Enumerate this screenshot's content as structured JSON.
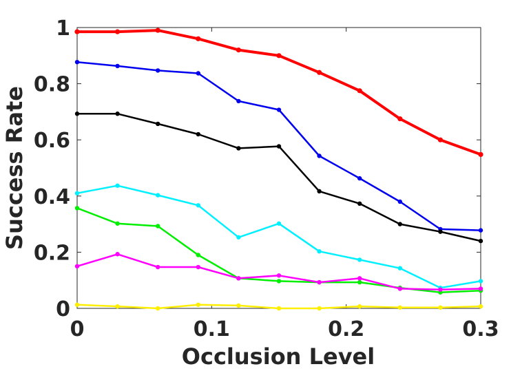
{
  "chart_data": {
    "type": "line",
    "title": "",
    "xlabel": "Occlusion Level",
    "ylabel": "Success Rate",
    "xlim": [
      0,
      0.3
    ],
    "ylim": [
      0,
      1
    ],
    "xticks": [
      0,
      0.1,
      0.2,
      0.3
    ],
    "xtick_labels": [
      "0",
      "0.1",
      "0.2",
      "0.3"
    ],
    "yticks": [
      0,
      0.2,
      0.4,
      0.6,
      0.8,
      1
    ],
    "ytick_labels": [
      "0",
      "0.2",
      "0.4",
      "0.6",
      "0.8",
      "1"
    ],
    "grid": false,
    "legend": "none",
    "x": [
      0,
      0.03,
      0.06,
      0.09,
      0.12,
      0.15,
      0.18,
      0.21,
      0.24,
      0.27,
      0.3
    ],
    "series": [
      {
        "color": "#ff0000",
        "thick": true,
        "values": [
          0.985,
          0.985,
          0.99,
          0.96,
          0.92,
          0.9,
          0.84,
          0.775,
          0.675,
          0.6,
          0.548
        ]
      },
      {
        "color": "#0000ee",
        "thick": false,
        "values": [
          0.877,
          0.863,
          0.847,
          0.837,
          0.738,
          0.707,
          0.543,
          0.463,
          0.38,
          0.282,
          0.278
        ]
      },
      {
        "color": "#000000",
        "thick": false,
        "values": [
          0.693,
          0.693,
          0.657,
          0.62,
          0.57,
          0.577,
          0.417,
          0.373,
          0.3,
          0.273,
          0.24
        ]
      },
      {
        "color": "#00f0ff",
        "thick": false,
        "values": [
          0.41,
          0.437,
          0.403,
          0.367,
          0.253,
          0.302,
          0.203,
          0.173,
          0.143,
          0.073,
          0.097
        ]
      },
      {
        "color": "#00ee00",
        "thick": false,
        "values": [
          0.357,
          0.302,
          0.293,
          0.19,
          0.107,
          0.097,
          0.093,
          0.093,
          0.073,
          0.057,
          0.063
        ]
      },
      {
        "color": "#ff00ff",
        "thick": false,
        "values": [
          0.15,
          0.193,
          0.147,
          0.147,
          0.107,
          0.117,
          0.093,
          0.107,
          0.07,
          0.067,
          0.07
        ]
      },
      {
        "color": "#ffee00",
        "thick": false,
        "values": [
          0.013,
          0.007,
          0.0,
          0.013,
          0.01,
          0.0,
          0.0,
          0.007,
          0.003,
          0.003,
          0.007
        ]
      }
    ]
  }
}
